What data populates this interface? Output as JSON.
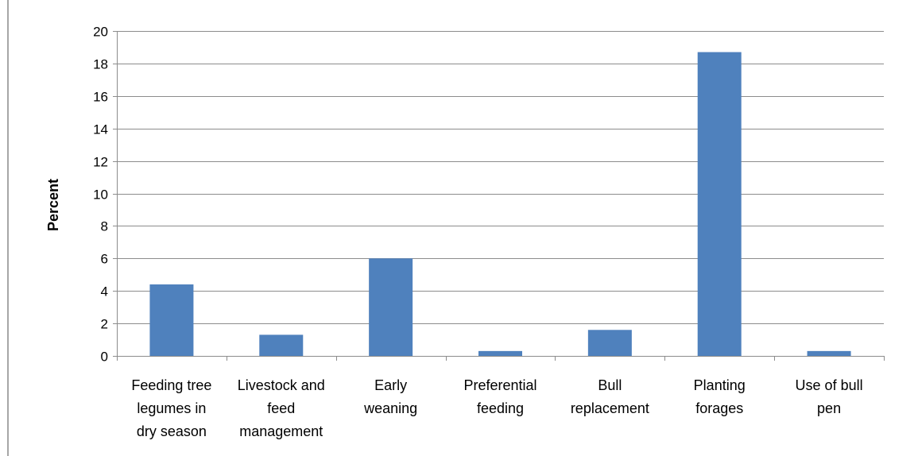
{
  "chart_data": {
    "type": "bar",
    "ylabel": "Percent",
    "xlabel": "",
    "ylim": [
      0,
      20
    ],
    "yticks": [
      0,
      2,
      4,
      6,
      8,
      10,
      12,
      14,
      16,
      18,
      20
    ],
    "grid": true,
    "legend": "none",
    "bar_color": "#4f81bd",
    "categories": [
      [
        "Feeding tree",
        "legumes in",
        "dry season"
      ],
      [
        "Livestock and",
        "feed",
        "management"
      ],
      [
        "Early",
        "weaning"
      ],
      [
        "Preferential",
        "feeding"
      ],
      [
        "Bull",
        "replacement"
      ],
      [
        "Planting",
        "forages"
      ],
      [
        "Use of bull",
        "pen"
      ]
    ],
    "values": [
      4.4,
      1.3,
      6.0,
      0.3,
      1.6,
      18.7,
      0.3
    ]
  }
}
